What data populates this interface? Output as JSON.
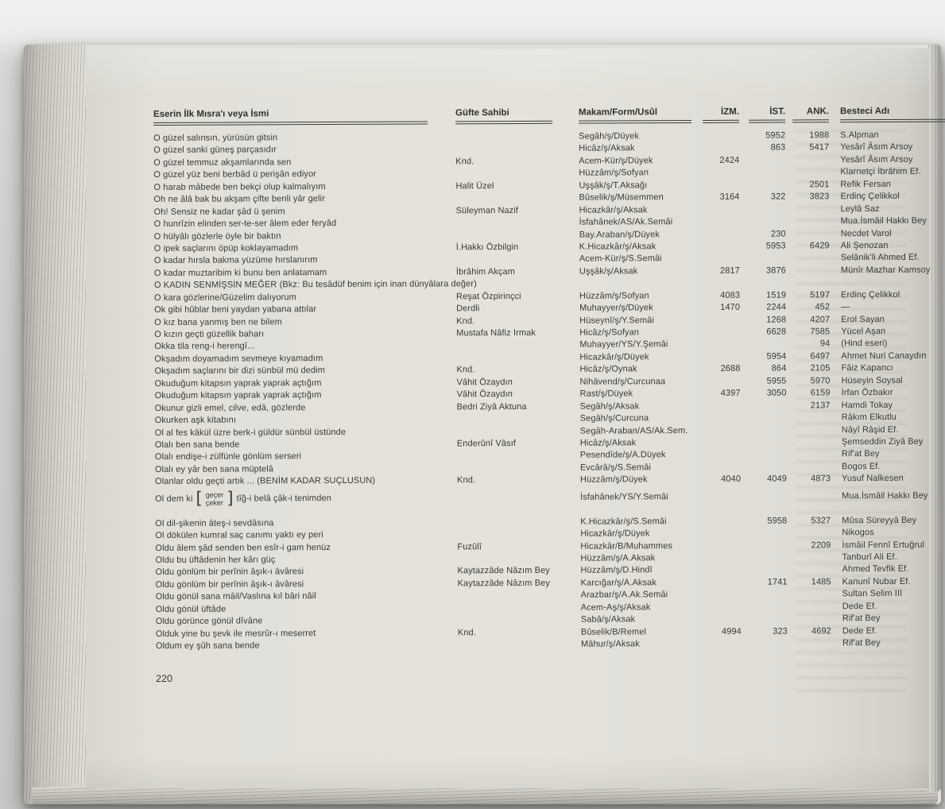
{
  "page": {
    "page_number": "220"
  },
  "colors": {
    "paper": "#e3e1da",
    "ink": "#3a3935"
  },
  "table": {
    "headers": {
      "title": "Eserin İlk Mısra'ı veya İsmi",
      "lyricist": "Güfte Sahibi",
      "makam": "Makam/Form/Usûl",
      "izm": "İZM.",
      "ist": "İST.",
      "ank": "ANK.",
      "composer": "Besteci Adı"
    },
    "rows": [
      {
        "title": "O güzel salınsın, yürüsün gitsin",
        "lyricist": "",
        "makam": "Segâh/ş/Düyek",
        "izm": "",
        "ist": "5952",
        "ank": "1988",
        "composer": "S.Alpman"
      },
      {
        "title": "O güzel sanki güneş parçasıdır",
        "lyricist": "",
        "makam": "Hicâz/ş/Aksak",
        "izm": "",
        "ist": "863",
        "ank": "5417",
        "composer": "Yesârî Âsım Arsoy"
      },
      {
        "title": "O güzel temmuz akşamlarında sen",
        "lyricist": "Knd.",
        "makam": "Acem-Kür/ş/Düyek",
        "izm": "2424",
        "ist": "",
        "ank": "",
        "composer": "Yesârî Âsım Arsoy"
      },
      {
        "title": "O güzel yüz beni berbâd ü perişân ediyor",
        "lyricist": "",
        "makam": "Hüzzâm/ş/Sofyan",
        "izm": "",
        "ist": "",
        "ank": "",
        "composer": "Klarnetçi İbrâhim Ef."
      },
      {
        "title": "O harab mâbede ben bekçi olup kalmalıyım",
        "lyricist": "Halit Üzel",
        "makam": "Uşşâk/ş/T.Aksağı",
        "izm": "",
        "ist": "",
        "ank": "2501",
        "composer": "Refik Fersan"
      },
      {
        "title": "Oh ne âlâ bak bu akşam çifte benli yâr gelir",
        "lyricist": "",
        "makam": "Bûselik/ş/Müsemmen",
        "izm": "3164",
        "ist": "322",
        "ank": "3823",
        "composer": "Erdinç Çelikkol"
      },
      {
        "title": "Oh! Sensiz ne kadar şâd ü şenim",
        "lyricist": "Süleyman Nazif",
        "makam": "Hicazkâr/ş/Aksak",
        "izm": "",
        "ist": "",
        "ank": "",
        "composer": "Leylâ Saz"
      },
      {
        "title": "O hunrîzin elinden ser-te-ser âlem eder feryâd",
        "lyricist": "",
        "makam": "İsfahânek/AS/Ak.Semâi",
        "izm": "",
        "ist": "",
        "ank": "",
        "composer": "Mua.İsmâil Hakkı Bey"
      },
      {
        "title": "O hülyâlı gözlerle öyle bir baktın",
        "lyricist": "",
        "makam": "Bay.Araban/ş/Düyek",
        "izm": "",
        "ist": "230",
        "ank": "",
        "composer": "Necdet Varol"
      },
      {
        "title": "O ipek saçlarını öpüp koklayamadım",
        "lyricist": "İ.Hakkı Özbilgin",
        "makam": "K.Hicazkâr/ş/Aksak",
        "izm": "",
        "ist": "5953",
        "ank": "6429",
        "composer": "Ali Şenozan"
      },
      {
        "title": "O kadar hırsla bakma yüzüme hırslanırım",
        "lyricist": "",
        "makam": "Acem-Kür/ş/S.Semâi",
        "izm": "",
        "ist": "",
        "ank": "",
        "composer": "Selânik'li Ahmed Ef."
      },
      {
        "title": "O kadar muztaribim ki bunu ben anlatamam",
        "lyricist": "İbrâhim Akçam",
        "makam": "Uşşâk/ş/Aksak",
        "izm": "2817",
        "ist": "3876",
        "ank": "",
        "composer": "Münîr Mazhar Kamsoy"
      },
      {
        "title": "O KADIN SENMİŞSİN MEĞER (Bkz: Bu tesâdüf benim için inan dünyâlara değer)",
        "full_width": true
      },
      {
        "title": "O kara gözlerine/Güzelim dalıyorum",
        "lyricist": "Reşat Özpirinçci",
        "makam": "Hüzzâm/ş/Sofyan",
        "izm": "4083",
        "ist": "1519",
        "ank": "5197",
        "composer": "Erdinç Çelikkol"
      },
      {
        "title": "Ok gibi hûblar beni yaydan yabana attılar",
        "lyricist": "Derdli",
        "makam": "Muhayyer/ş/Düyek",
        "izm": "1470",
        "ist": "2244",
        "ank": "452",
        "composer": "—"
      },
      {
        "title": "O kız bana yanmış ben ne bilem",
        "lyricist": "Knd.",
        "makam": "Hüseynî/ş/Y.Semâi",
        "izm": "",
        "ist": "1268",
        "ank": "4207",
        "composer": "Erol Sayan"
      },
      {
        "title": "O kızın geçti güzellik baharı",
        "lyricist": "Mustafa Nâfiz Irmak",
        "makam": "Hicâz/ş/Sofyan",
        "izm": "",
        "ist": "6628",
        "ank": "7585",
        "composer": "Yücel Aşan"
      },
      {
        "title": "Okka tila reng-i herengî...",
        "lyricist": "",
        "makam": "Muhayyer/YS/Y.Şemâi",
        "izm": "",
        "ist": "",
        "ank": "94",
        "composer": "(Hind eseri)"
      },
      {
        "title": "Okşadım doyamadım sevmeye kıyamadım",
        "lyricist": "",
        "makam": "Hicazkâr/ş/Düyek",
        "izm": "",
        "ist": "5954",
        "ank": "6497",
        "composer": "Ahmet Nuri Canaydın"
      },
      {
        "title": "Okşadım saçlarını bir dizi sünbül mü dedim",
        "lyricist": "Knd.",
        "makam": "Hicâz/ş/Oynak",
        "izm": "2688",
        "ist": "864",
        "ank": "2105",
        "composer": "Fâiz Kapancı"
      },
      {
        "title": "Okuduğum kitapsın yaprak yaprak açtığım",
        "lyricist": "Vâhit Özaydın",
        "makam": "Nihâvend/ş/Curcunaa",
        "izm": "",
        "ist": "5955",
        "ank": "5970",
        "composer": "Hüseyin Soysal"
      },
      {
        "title": "Okuduğum kitapsın yaprak yaprak açtığım",
        "lyricist": "Vâhit Özaydın",
        "makam": "Rast/ş/Düyek",
        "izm": "4397",
        "ist": "3050",
        "ank": "6159",
        "composer": "İrfan Özbakır"
      },
      {
        "title": "Okunur gizli emel, cilve, edâ, gözlerde",
        "lyricist": "Bedri Ziyâ Aktuna",
        "makam": "Segâh/ş/Aksak",
        "izm": "",
        "ist": "",
        "ank": "2137",
        "composer": "Hamdi Tokay"
      },
      {
        "title": "Okurken aşk kitabını",
        "lyricist": "",
        "makam": "Segâh/ş/Curcuna",
        "izm": "",
        "ist": "",
        "ank": "",
        "composer": "Râkım Elkutlu"
      },
      {
        "title": "Ol al fes kâkül üzre berk-i güldür sünbül üstünde",
        "lyricist": "",
        "makam": "Segâh-Araban/AS/Ak.Sem.",
        "izm": "",
        "ist": "",
        "ank": "",
        "composer": "Nâyî Râşid Ef."
      },
      {
        "title": "Olalı ben sana bende",
        "lyricist": "Enderûnî Vâsıf",
        "makam": "Hicâz/ş/Aksak",
        "izm": "",
        "ist": "",
        "ank": "",
        "composer": "Şemseddin Ziyâ Bey"
      },
      {
        "title": "Olalı endişe-i zülfünle gönlüm serseri",
        "lyricist": "",
        "makam": "Pesendîde/ş/A.Düyek",
        "izm": "",
        "ist": "",
        "ank": "",
        "composer": "Rif'at Bey"
      },
      {
        "title": "Olalı ey yâr ben sana müptelâ",
        "lyricist": "",
        "makam": "Evcârâ/ş/S.Semâi",
        "izm": "",
        "ist": "",
        "ank": "",
        "composer": "Bogos Ef."
      },
      {
        "title": "Olanlar oldu geçti artık ... (BENİM KADAR SUÇLUSUN)",
        "lyricist": "Knd.",
        "makam": "Hüzzâm/ş/Düyek",
        "izm": "4040",
        "ist": "4049",
        "ank": "4873",
        "composer": "Yusuf Nalkesen"
      },
      {
        "bracket": {
          "prefix": "Ol dem ki",
          "top": "geçer",
          "bottom": "çeker",
          "suffix": "tîğ-i belâ çâk-i tenimden"
        },
        "lyricist": "",
        "makam": "İsfahânek/YS/Y.Semâi",
        "izm": "",
        "ist": "",
        "ank": "",
        "composer": "Mua.İsmâil Hakkı Bey"
      },
      {
        "title": "Ol dil-şikenin âteş-i sevdâsına",
        "lyricist": "",
        "makam": "K.Hicazkâr/ş/S.Semâi",
        "izm": "",
        "ist": "5958",
        "ank": "5327",
        "composer": "Mûsa Süreyyâ Bey",
        "gap_before": true
      },
      {
        "title": "Ol dökülen kumral saç canımı yaktı ey peri",
        "lyricist": "",
        "makam": "Hicazkâr/ş/Düyek",
        "izm": "",
        "ist": "",
        "ank": "",
        "composer": "Nikogos"
      },
      {
        "title": "Oldu âlem şâd senden ben esîr-i gam henüz",
        "lyricist": "Fuzûlî",
        "makam": "Hicazkâr/B/Muhammes",
        "izm": "",
        "ist": "",
        "ank": "2209",
        "composer": "İsmâil Fennî Ertuğrul"
      },
      {
        "title": "Oldu bu üftâdenin her kârı güç",
        "lyricist": "",
        "makam": "Hüzzâm/ş/A.Aksak",
        "izm": "",
        "ist": "",
        "ank": "",
        "composer": "Tanburî Ali Ef."
      },
      {
        "title": "Oldu gönlüm bir perînin âşık-ı âvâresi",
        "lyricist": "Kaytazzâde Nâzım Bey",
        "makam": "Hüzzâm/ş/D.Hindî",
        "izm": "",
        "ist": "",
        "ank": "",
        "composer": "Ahmed Tevfik Ef."
      },
      {
        "title": "Oldu gönlüm bir perînin âşık-ı âvâresi",
        "lyricist": "Kaytazzâde Nâzım Bey",
        "makam": "Karcığar/ş/A.Aksak",
        "izm": "",
        "ist": "1741",
        "ank": "1485",
        "composer": "Kanunî Nubar Ef."
      },
      {
        "title": "Oldu gönül sana mâil/Vaslına kıl bâri nâil",
        "lyricist": "",
        "makam": "Arazbar/ş/A.Ak.Semâi",
        "izm": "",
        "ist": "",
        "ank": "",
        "composer": "Sultan Selim III"
      },
      {
        "title": "Oldu gönül üftâde",
        "lyricist": "",
        "makam": "Acem-Aş/ş/Aksak",
        "izm": "",
        "ist": "",
        "ank": "",
        "composer": "Dede Ef."
      },
      {
        "title": "Oldu görünce gönül dîvâne",
        "lyricist": "",
        "makam": "Sabâ/ş/Aksak",
        "izm": "",
        "ist": "",
        "ank": "",
        "composer": "Rif'at Bey"
      },
      {
        "title": "Olduk yine bu şevk ile mesrûr-ı meserret",
        "lyricist": "Knd.",
        "makam": "Bûselik/B/Remel",
        "izm": "4994",
        "ist": "323",
        "ank": "4692",
        "composer": "Dede Ef."
      },
      {
        "title": "Oldum ey şûh sana bende",
        "lyricist": "",
        "makam": "Mâhur/ş/Aksak",
        "izm": "",
        "ist": "",
        "ank": "",
        "composer": "Rif'at Bey"
      }
    ]
  }
}
